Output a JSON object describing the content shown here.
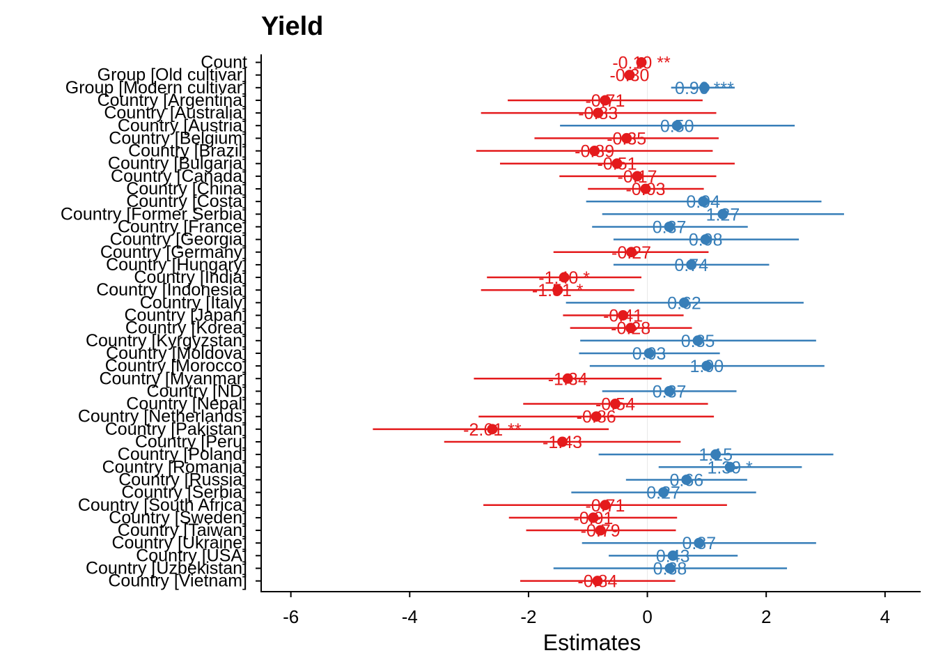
{
  "colors": {
    "negative": "#E41A1C",
    "positive": "#377EB8",
    "zero_line": "#E8E8E8",
    "axis": "#000000"
  },
  "chart_data": {
    "type": "forest",
    "title": "Yield",
    "xlabel": "Estimates",
    "ylabel": "",
    "xlim": [
      -6.5,
      4.6
    ],
    "xticks": [
      -6,
      -4,
      -2,
      0,
      2,
      4
    ],
    "xtick_labels": [
      "-6",
      "-4",
      "-2",
      "0",
      "2",
      "4"
    ],
    "reference_line": 0,
    "terms": [
      {
        "term": "Count",
        "estimate": -0.1,
        "ci": [
          -0.1,
          -0.1
        ],
        "label": "-0.10 **"
      },
      {
        "term": "Group [Old cultivar]",
        "estimate": -0.3,
        "ci": [
          -0.3,
          -0.3
        ],
        "label": "-0.30"
      },
      {
        "term": "Group [Modern cultivar]",
        "estimate": 0.96,
        "ci": [
          0.4,
          1.47
        ],
        "label": "0.96 ***"
      },
      {
        "term": "Country [Argentina]",
        "estimate": -0.71,
        "ci": [
          -2.35,
          0.93
        ],
        "label": "-0.71"
      },
      {
        "term": "Country [Australia]",
        "estimate": -0.83,
        "ci": [
          -2.8,
          1.16
        ],
        "label": "-0.83"
      },
      {
        "term": "Country [Austria]",
        "estimate": 0.5,
        "ci": [
          -1.47,
          2.48
        ],
        "label": "0.50"
      },
      {
        "term": "Country [Belgium]",
        "estimate": -0.35,
        "ci": [
          -1.9,
          1.2
        ],
        "label": "-0.35"
      },
      {
        "term": "Country [Brazil]",
        "estimate": -0.89,
        "ci": [
          -2.88,
          1.1
        ],
        "label": "-0.89"
      },
      {
        "term": "Country [Bulgaria]",
        "estimate": -0.51,
        "ci": [
          -2.48,
          1.47
        ],
        "label": "-0.51"
      },
      {
        "term": "Country [Canada]",
        "estimate": -0.17,
        "ci": [
          -1.48,
          1.16
        ],
        "label": "-0.17"
      },
      {
        "term": "Country [China]",
        "estimate": -0.03,
        "ci": [
          -1.0,
          0.95
        ],
        "label": "-0.03"
      },
      {
        "term": "Country [Costa]",
        "estimate": 0.94,
        "ci": [
          -1.03,
          2.93
        ],
        "label": "0.94"
      },
      {
        "term": "Country [Former Serbia]",
        "estimate": 1.27,
        "ci": [
          -0.76,
          3.31
        ],
        "label": "1.27"
      },
      {
        "term": "Country [France]",
        "estimate": 0.37,
        "ci": [
          -0.93,
          1.69
        ],
        "label": "0.37"
      },
      {
        "term": "Country [Georgia]",
        "estimate": 0.98,
        "ci": [
          -0.57,
          2.55
        ],
        "label": "0.98"
      },
      {
        "term": "Country [Germany]",
        "estimate": -0.27,
        "ci": [
          -1.58,
          1.03
        ],
        "label": "-0.27"
      },
      {
        "term": "Country [Hungary]",
        "estimate": 0.74,
        "ci": [
          -0.57,
          2.05
        ],
        "label": "0.74"
      },
      {
        "term": "Country [India]",
        "estimate": -1.4,
        "ci": [
          -2.7,
          -0.1
        ],
        "label": "-1.40 *"
      },
      {
        "term": "Country [Indonesia]",
        "estimate": -1.51,
        "ci": [
          -2.8,
          -0.22
        ],
        "label": "-1.51 *"
      },
      {
        "term": "Country [Italy]",
        "estimate": 0.62,
        "ci": [
          -1.37,
          2.63
        ],
        "label": "0.62"
      },
      {
        "term": "Country [Japan]",
        "estimate": -0.41,
        "ci": [
          -1.42,
          0.61
        ],
        "label": "-0.41"
      },
      {
        "term": "Country [Korea]",
        "estimate": -0.28,
        "ci": [
          -1.3,
          0.75
        ],
        "label": "-0.28"
      },
      {
        "term": "Country [Kyrgyzstan]",
        "estimate": 0.85,
        "ci": [
          -1.13,
          2.84
        ],
        "label": "0.85"
      },
      {
        "term": "Country [Moldova]",
        "estimate": 0.03,
        "ci": [
          -1.15,
          1.22
        ],
        "label": "0.03"
      },
      {
        "term": "Country [Morocco]",
        "estimate": 1.0,
        "ci": [
          -0.97,
          2.98
        ],
        "label": "1.00"
      },
      {
        "term": "Country [Myanmar]",
        "estimate": -1.34,
        "ci": [
          -2.92,
          0.24
        ],
        "label": "-1.34"
      },
      {
        "term": "Country [ND]",
        "estimate": 0.37,
        "ci": [
          -0.76,
          1.5
        ],
        "label": "0.37"
      },
      {
        "term": "Country [Nepal]",
        "estimate": -0.54,
        "ci": [
          -2.09,
          1.02
        ],
        "label": "-0.54"
      },
      {
        "term": "Country [Netherlands]",
        "estimate": -0.86,
        "ci": [
          -2.84,
          1.12
        ],
        "label": "-0.86"
      },
      {
        "term": "Country [Pakistan]",
        "estimate": -2.61,
        "ci": [
          -4.62,
          -0.65
        ],
        "label": "-2.61 **"
      },
      {
        "term": "Country [Peru]",
        "estimate": -1.43,
        "ci": [
          -3.42,
          0.56
        ],
        "label": "-1.43"
      },
      {
        "term": "Country [Poland]",
        "estimate": 1.15,
        "ci": [
          -0.82,
          3.13
        ],
        "label": "1.15"
      },
      {
        "term": "Country [Romania]",
        "estimate": 1.39,
        "ci": [
          0.19,
          2.6
        ],
        "label": "1.39 *"
      },
      {
        "term": "Country [Russia]",
        "estimate": 0.66,
        "ci": [
          -0.36,
          1.68
        ],
        "label": "0.66"
      },
      {
        "term": "Country [Serbia]",
        "estimate": 0.27,
        "ci": [
          -1.28,
          1.83
        ],
        "label": "0.27"
      },
      {
        "term": "Country [South Africa]",
        "estimate": -0.71,
        "ci": [
          -2.76,
          1.34
        ],
        "label": "-0.71"
      },
      {
        "term": "Country [Sweden]",
        "estimate": -0.91,
        "ci": [
          -2.33,
          0.5
        ],
        "label": "-0.91"
      },
      {
        "term": "Country [Taiwan]",
        "estimate": -0.79,
        "ci": [
          -2.04,
          0.48
        ],
        "label": "-0.79"
      },
      {
        "term": "Country [Ukraine]",
        "estimate": 0.87,
        "ci": [
          -1.1,
          2.84
        ],
        "label": "0.87"
      },
      {
        "term": "Country [USA]",
        "estimate": 0.43,
        "ci": [
          -0.65,
          1.52
        ],
        "label": "0.43"
      },
      {
        "term": "Country [Uzbekistan]",
        "estimate": 0.38,
        "ci": [
          -1.58,
          2.35
        ],
        "label": "0.38"
      },
      {
        "term": "Country [Vietnam]",
        "estimate": -0.84,
        "ci": [
          -2.14,
          0.47
        ],
        "label": "-0.84"
      }
    ]
  }
}
